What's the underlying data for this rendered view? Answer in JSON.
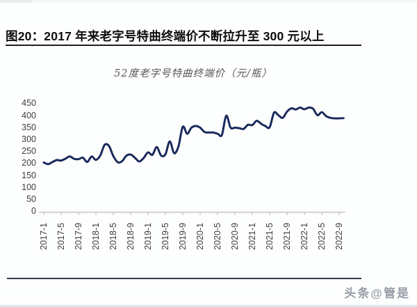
{
  "header": {
    "title": "图20：2017 年来老字号特曲终端价不断拉升至 300 元以上"
  },
  "chart": {
    "subtitle": "52度老字号特曲终端价（元/瓶）"
  },
  "footer": {
    "watermark": "头条@管是"
  },
  "colors": {
    "line": "#1a2a5c",
    "axis": "#bfbfbf",
    "title_text": "#0d0d0d",
    "tick_text": "#3d3d3d",
    "watermark_text": "#979da6"
  },
  "chart_data": {
    "type": "line",
    "title": "52度老字号特曲终端价（元/瓶）",
    "xlabel": "",
    "ylabel": "",
    "ylim": [
      0,
      450
    ],
    "grid": false,
    "legend": "none",
    "line_color": "#1a2a5c",
    "y_ticks": [
      450,
      400,
      350,
      300,
      250,
      200,
      150,
      100,
      50,
      0
    ],
    "x_tick_labels": [
      "2017-1",
      "2017-5",
      "2017-9",
      "2018-1",
      "2018-5",
      "2018-9",
      "2019-1",
      "2019-5",
      "2019-9",
      "2020-1",
      "2020-5",
      "2020-9",
      "2021-1",
      "2021-5",
      "2021-9",
      "2022-1",
      "2022-5",
      "2022-9"
    ],
    "x": [
      "2017-1",
      "2017-2",
      "2017-3",
      "2017-4",
      "2017-5",
      "2017-6",
      "2017-7",
      "2017-8",
      "2017-9",
      "2017-10",
      "2017-11",
      "2017-12",
      "2018-1",
      "2018-2",
      "2018-3",
      "2018-4",
      "2018-5",
      "2018-6",
      "2018-7",
      "2018-8",
      "2018-9",
      "2018-10",
      "2018-11",
      "2018-12",
      "2019-1",
      "2019-2",
      "2019-3",
      "2019-4",
      "2019-5",
      "2019-6",
      "2019-7",
      "2019-8",
      "2019-9",
      "2019-10",
      "2019-11",
      "2019-12",
      "2020-1",
      "2020-2",
      "2020-3",
      "2020-4",
      "2020-5",
      "2020-6",
      "2020-7",
      "2020-8",
      "2020-9",
      "2020-10",
      "2020-11",
      "2020-12",
      "2021-1",
      "2021-2",
      "2021-3",
      "2021-4",
      "2021-5",
      "2021-6",
      "2021-7",
      "2021-8",
      "2021-9",
      "2021-10",
      "2021-11",
      "2021-12",
      "2022-1",
      "2022-2",
      "2022-3",
      "2022-4",
      "2022-5",
      "2022-6",
      "2022-7",
      "2022-8",
      "2022-9",
      "2022-10"
    ],
    "values": [
      203,
      196,
      205,
      213,
      211,
      219,
      228,
      218,
      217,
      223,
      205,
      228,
      214,
      232,
      276,
      272,
      230,
      204,
      208,
      231,
      236,
      222,
      207,
      222,
      245,
      235,
      267,
      232,
      237,
      291,
      242,
      270,
      352,
      323,
      348,
      355,
      348,
      330,
      328,
      328,
      323,
      318,
      398,
      348,
      348,
      346,
      343,
      360,
      359,
      377,
      365,
      355,
      350,
      411,
      400,
      389,
      415,
      429,
      424,
      432,
      425,
      432,
      427,
      400,
      413,
      396,
      389,
      387,
      387,
      388
    ]
  }
}
